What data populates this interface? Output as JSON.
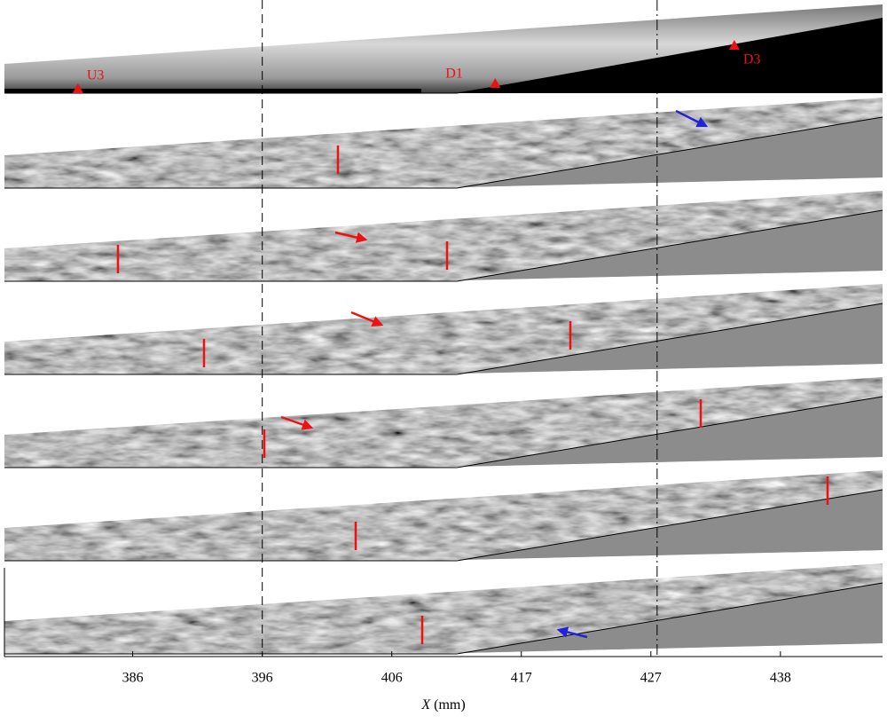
{
  "figure": {
    "markers": [
      {
        "label": "U3",
        "x": 381.2
      },
      {
        "label": "D1",
        "x": 414.7
      },
      {
        "label": "D3",
        "x": 433.9
      }
    ],
    "axis": {
      "xlabel": {
        "symbol": "X",
        "unit": "(mm)"
      },
      "xlim": [
        375.3,
        445.8
      ],
      "xticks": [
        {
          "value": 385.6,
          "label": "386"
        },
        {
          "value": 396.0,
          "label": "396"
        },
        {
          "value": 406.4,
          "label": "406"
        },
        {
          "value": 416.8,
          "label": "417"
        },
        {
          "value": 427.2,
          "label": "427"
        },
        {
          "value": 437.6,
          "label": "438"
        }
      ],
      "reference_lines": [
        {
          "value": 396.0,
          "style": "dashed"
        },
        {
          "value": 427.7,
          "style": "dashdot"
        }
      ]
    }
  }
}
